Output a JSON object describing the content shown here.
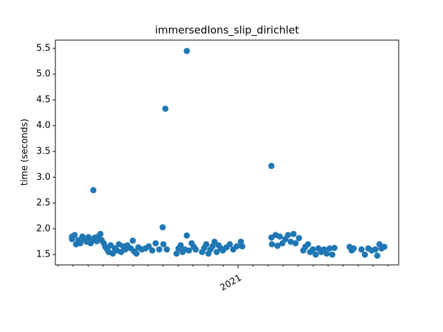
{
  "chart_data": {
    "type": "scatter",
    "title": "immersedIons_slip_dirichlet",
    "ylabel": "time (seconds)",
    "color": "#1f77b4",
    "x": [
      2020.077,
      2020.077,
      2020.092,
      2020.1,
      2020.112,
      2020.123,
      2020.135,
      2020.146,
      2020.158,
      2020.169,
      2020.181,
      2020.192,
      2020.196,
      2020.204,
      2020.215,
      2020.227,
      2020.235,
      2020.242,
      2020.254,
      2020.262,
      2020.273,
      2020.281,
      2020.292,
      2020.304,
      2020.315,
      2020.327,
      2020.338,
      2020.35,
      2020.362,
      2020.373,
      2020.385,
      2020.404,
      2020.415,
      2020.423,
      2020.435,
      2020.446,
      2020.465,
      2020.485,
      2020.504,
      2020.523,
      2020.542,
      2020.562,
      2020.581,
      2020.585,
      2020.596,
      2020.604,
      2020.658,
      2020.669,
      2020.681,
      2020.692,
      2020.704,
      2020.715,
      2020.715,
      2020.727,
      2020.742,
      2020.754,
      2020.765,
      2020.8,
      2020.812,
      2020.823,
      2020.835,
      2020.846,
      2020.858,
      2020.869,
      2020.881,
      2020.892,
      2020.904,
      2020.915,
      2020.935,
      2020.954,
      2020.973,
      2020.992,
      2021.015,
      2021.023,
      2021.185,
      2021.185,
      2021.188,
      2021.208,
      2021.219,
      2021.231,
      2021.246,
      2021.262,
      2021.277,
      2021.292,
      2021.308,
      2021.319,
      2021.338,
      2021.362,
      2021.373,
      2021.388,
      2021.4,
      2021.415,
      2021.431,
      2021.446,
      2021.462,
      2021.477,
      2021.492,
      2021.508,
      2021.523,
      2021.535,
      2021.619,
      2021.631,
      2021.642,
      2021.685,
      2021.704,
      2021.723,
      2021.742,
      2021.762,
      2021.773,
      2021.785,
      2021.796,
      2021.812
    ],
    "values": [
      1.85,
      1.8,
      1.88,
      1.7,
      1.78,
      1.72,
      1.85,
      1.8,
      1.75,
      1.84,
      1.72,
      1.78,
      2.75,
      1.83,
      1.76,
      1.86,
      1.9,
      1.78,
      1.72,
      1.65,
      1.6,
      1.55,
      1.68,
      1.52,
      1.62,
      1.58,
      1.7,
      1.55,
      1.66,
      1.6,
      1.68,
      1.62,
      1.77,
      1.56,
      1.52,
      1.64,
      1.6,
      1.62,
      1.66,
      1.58,
      1.72,
      1.6,
      2.03,
      1.7,
      4.33,
      1.6,
      1.52,
      1.62,
      1.68,
      1.55,
      1.6,
      5.45,
      1.87,
      1.58,
      1.72,
      1.65,
      1.6,
      1.55,
      1.63,
      1.7,
      1.52,
      1.6,
      1.66,
      1.75,
      1.55,
      1.68,
      1.62,
      1.58,
      1.64,
      1.7,
      1.6,
      1.66,
      1.75,
      1.66,
      3.22,
      1.83,
      1.7,
      1.88,
      1.67,
      1.85,
      1.72,
      1.8,
      1.88,
      1.75,
      1.9,
      1.72,
      1.82,
      1.58,
      1.65,
      1.7,
      1.55,
      1.6,
      1.5,
      1.62,
      1.55,
      1.6,
      1.52,
      1.62,
      1.5,
      1.63,
      1.65,
      1.58,
      1.62,
      1.6,
      1.5,
      1.62,
      1.58,
      1.6,
      1.48,
      1.7,
      1.62,
      1.65
    ],
    "xlim": [
      2019.985,
      2021.892
    ],
    "xticks": [
      2021
    ],
    "xminorticks": [
      2020.0,
      2020.083,
      2020.167,
      2020.25,
      2020.333,
      2020.417,
      2020.5,
      2020.583,
      2020.667,
      2020.75,
      2020.833,
      2020.917,
      2021.083,
      2021.167,
      2021.25,
      2021.333,
      2021.417,
      2021.5,
      2021.583,
      2021.667,
      2021.75,
      2021.833
    ],
    "ylim": [
      1.3,
      5.66
    ],
    "yticks": [
      1.5,
      {
        "value": 2,
        "label": "2.0"
      },
      2.5,
      {
        "value": 3,
        "label": "3.0"
      },
      3.5,
      {
        "value": 4,
        "label": "4.0"
      },
      4.5,
      {
        "value": 5,
        "label": "5.0"
      },
      5.5
    ]
  }
}
